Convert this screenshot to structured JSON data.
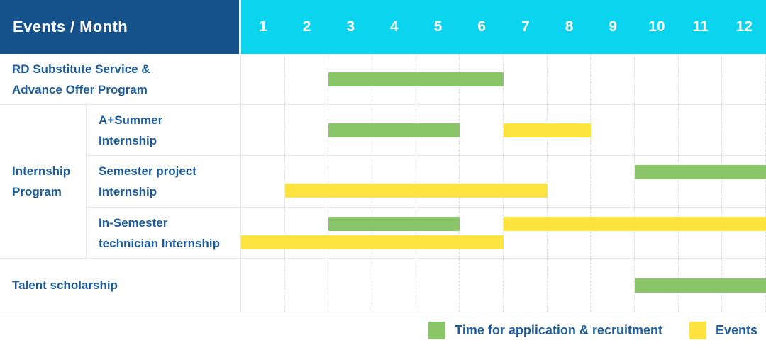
{
  "header": {
    "title": "Events / Month",
    "months": [
      "1",
      "2",
      "3",
      "4",
      "5",
      "6",
      "7",
      "8",
      "9",
      "10",
      "11",
      "12"
    ]
  },
  "colors": {
    "header_bg": "#15518B",
    "months_bg": "#0BD5EE",
    "label_text": "#1D5D9E",
    "recruitment": "#8BC56A",
    "event": "#FFE440"
  },
  "chart_data": {
    "type": "gantt",
    "title": "Events / Month",
    "x_axis": {
      "label": "Month",
      "ticks": [
        "1",
        "2",
        "3",
        "4",
        "5",
        "6",
        "7",
        "8",
        "9",
        "10",
        "11",
        "12"
      ],
      "range": [
        1,
        12
      ]
    },
    "legend": [
      {
        "type": "recruitment",
        "label": "Time for application & recruitment",
        "color": "#8BC56A"
      },
      {
        "type": "event",
        "label": "Events",
        "color": "#FFE440"
      }
    ],
    "rows": [
      {
        "label": "RD Substitute Service &\nAdvance Offer Program",
        "lanes": [
          [
            {
              "type": "recruitment",
              "start": 3,
              "end": 6
            }
          ]
        ]
      },
      {
        "group": "Internship\nProgram",
        "label": "A+Summer\nInternship",
        "lanes": [
          [
            {
              "type": "recruitment",
              "start": 3,
              "end": 5
            },
            {
              "type": "event",
              "start": 7,
              "end": 8
            }
          ]
        ]
      },
      {
        "label": "Semester project\nInternship",
        "lanes": [
          [
            {
              "type": "recruitment",
              "start": 10,
              "end": 12
            }
          ],
          [
            {
              "type": "event",
              "start": 2,
              "end": 7
            }
          ]
        ]
      },
      {
        "label": "In-Semester\ntechnician Internship",
        "lanes": [
          [
            {
              "type": "recruitment",
              "start": 3,
              "end": 5
            },
            {
              "type": "event",
              "start": 7,
              "end": 12
            }
          ],
          [
            {
              "type": "event",
              "start": 1,
              "end": 6
            }
          ]
        ]
      },
      {
        "label": "Talent scholarship",
        "lanes": [
          [
            {
              "type": "recruitment",
              "start": 10,
              "end": 12
            }
          ]
        ]
      }
    ]
  }
}
